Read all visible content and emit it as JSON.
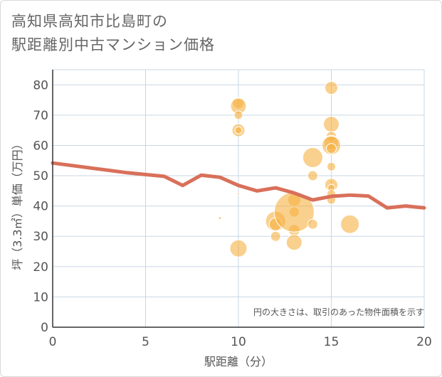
{
  "title_lines": [
    "高知県高知市比島町の",
    "駅距離別中古マンション価格"
  ],
  "chart_data": {
    "type": "scatter",
    "title": "高知県高知市比島町の駅距離別中古マンション価格",
    "xlabel": "駅距離（分）",
    "ylabel": "坪（3.3㎡）単価（万円）",
    "xlim": [
      0,
      20
    ],
    "ylim": [
      0,
      85
    ],
    "xticks": [
      0,
      5,
      10,
      15,
      20
    ],
    "yticks": [
      0,
      10,
      20,
      30,
      40,
      50,
      60,
      70,
      80
    ],
    "grid": true,
    "note": "円の大きさは、取引のあった物件面積を示す",
    "colors": {
      "bubble": "#f5b041",
      "line": "#d9705a",
      "grid": "#c8d6e5"
    },
    "bubbles": [
      {
        "x": 9,
        "y": 36,
        "r": 2
      },
      {
        "x": 10,
        "y": 74,
        "r": 8
      },
      {
        "x": 10,
        "y": 73,
        "r": 11
      },
      {
        "x": 10,
        "y": 70,
        "r": 6
      },
      {
        "x": 10,
        "y": 65,
        "r": 9
      },
      {
        "x": 10,
        "y": 65,
        "r": 5
      },
      {
        "x": 10,
        "y": 44,
        "r": 1.5
      },
      {
        "x": 10,
        "y": 26,
        "r": 12
      },
      {
        "x": 12,
        "y": 35,
        "r": 14
      },
      {
        "x": 12,
        "y": 34,
        "r": 9
      },
      {
        "x": 12,
        "y": 30,
        "r": 7
      },
      {
        "x": 13,
        "y": 42,
        "r": 9
      },
      {
        "x": 13,
        "y": 38,
        "r": 7
      },
      {
        "x": 13,
        "y": 32,
        "r": 8
      },
      {
        "x": 13,
        "y": 28,
        "r": 11
      },
      {
        "x": 13,
        "y": 38,
        "r": 28
      },
      {
        "x": 14,
        "y": 56,
        "r": 14
      },
      {
        "x": 14,
        "y": 50,
        "r": 7
      },
      {
        "x": 14,
        "y": 34,
        "r": 7
      },
      {
        "x": 15,
        "y": 79,
        "r": 9
      },
      {
        "x": 15,
        "y": 67,
        "r": 11
      },
      {
        "x": 15,
        "y": 63,
        "r": 7
      },
      {
        "x": 15,
        "y": 61,
        "r": 10
      },
      {
        "x": 15,
        "y": 60,
        "r": 13
      },
      {
        "x": 15,
        "y": 59,
        "r": 7
      },
      {
        "x": 15,
        "y": 53,
        "r": 6
      },
      {
        "x": 15,
        "y": 48,
        "r": 2
      },
      {
        "x": 15,
        "y": 47,
        "r": 9
      },
      {
        "x": 15,
        "y": 46,
        "r": 5
      },
      {
        "x": 15,
        "y": 44,
        "r": 6
      },
      {
        "x": 15,
        "y": 42,
        "r": 6
      },
      {
        "x": 16,
        "y": 34,
        "r": 13
      }
    ],
    "trend": {
      "x": [
        0,
        1,
        2,
        3,
        4,
        5,
        6,
        7,
        8,
        9,
        10,
        11,
        12,
        13,
        14,
        15,
        16,
        17,
        18,
        19,
        20
      ],
      "y": [
        54.2,
        53.4,
        52.6,
        51.8,
        51.0,
        50.4,
        49.8,
        46.8,
        50.2,
        49.5,
        46.8,
        45.0,
        46.0,
        44.3,
        42.0,
        43.2,
        43.6,
        43.3,
        39.4,
        40.0,
        39.4
      ]
    }
  }
}
